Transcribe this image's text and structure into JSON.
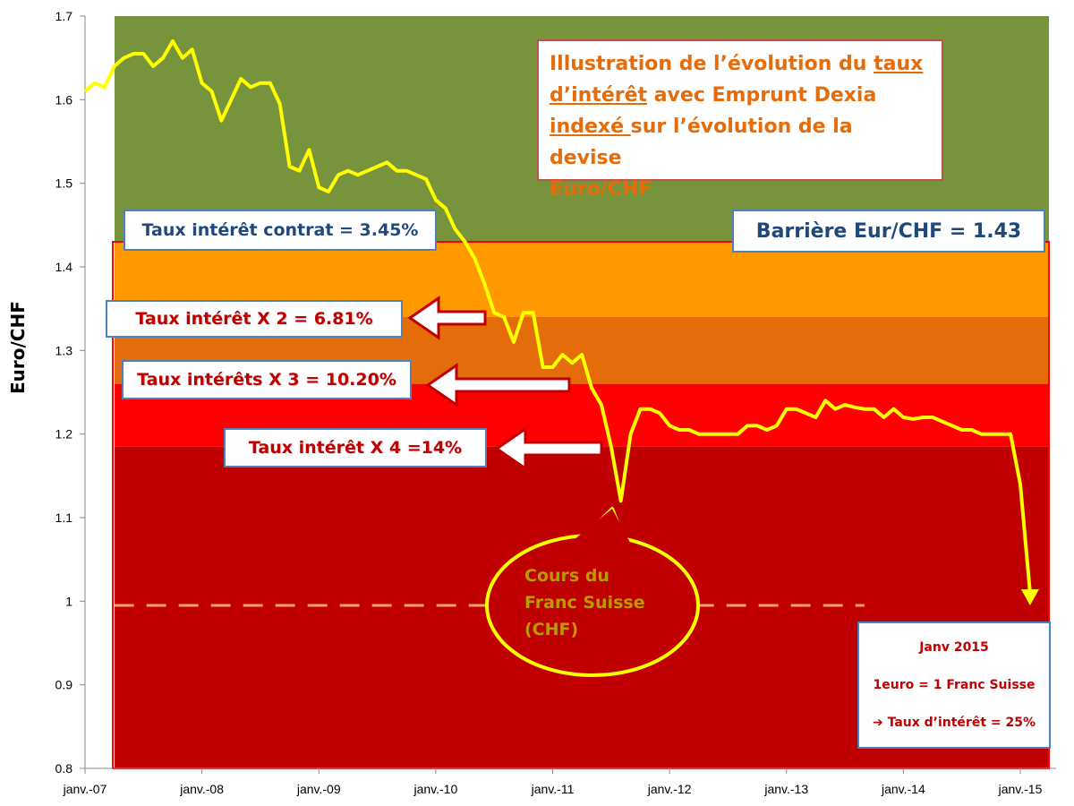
{
  "chart_data": {
    "type": "line",
    "title": "Illustration de l’évolution du taux d’intérêt avec Emprunt Dexia indexé sur l’évolution de la devise Euro/CHF",
    "title_parts": {
      "p1": "Illustration de l’évolution du ",
      "p2": "taux",
      "p3": "d’intérêt",
      "p4": " avec Emprunt Dexia",
      "p5": "indexé ",
      "p6": "sur l’évolution de la devise",
      "p7": "Euro/CHF"
    },
    "ylabel": "Euro/CHF",
    "xlabel": "",
    "ylim": [
      0.8,
      1.7
    ],
    "xlim": [
      "2007-01",
      "2015-03"
    ],
    "y_ticks": [
      "0.8",
      "0.9",
      "1",
      "1.1",
      "1.2",
      "1.3",
      "1.4",
      "1.5",
      "1.6",
      "1.7"
    ],
    "x_ticks": [
      "janv.-07",
      "janv.-08",
      "janv.-09",
      "janv.-10",
      "janv.-11",
      "janv.-12",
      "janv.-13",
      "janv.-14",
      "janv.-15"
    ],
    "grid": false,
    "colors": {
      "green": "#77933c",
      "orange": "#ff9900",
      "dark_orange": "#e46c0a",
      "red": "#ff0000",
      "dark_red": "#c00000",
      "line": "#ffff00",
      "dashed": "#f4a460"
    },
    "bands": [
      {
        "from": 1.43,
        "to": 1.7,
        "color": "#77933c"
      },
      {
        "from": 1.34,
        "to": 1.43,
        "color": "#ff9900"
      },
      {
        "from": 1.26,
        "to": 1.34,
        "color": "#e46c0a"
      },
      {
        "from": 1.185,
        "to": 1.26,
        "color": "#ff0000"
      },
      {
        "from": 0.8,
        "to": 1.185,
        "color": "#c00000"
      }
    ],
    "reference_line": {
      "y": 0.995,
      "from": "2007-04",
      "to": "2013-09"
    },
    "series": [
      {
        "x": [
          "2007-01",
          "2007-02",
          "2007-03",
          "2007-04",
          "2007-05",
          "2007-06",
          "2007-07",
          "2007-08",
          "2007-09",
          "2007-10",
          "2007-11",
          "2007-12",
          "2008-01",
          "2008-02",
          "2008-03",
          "2008-04",
          "2008-05",
          "2008-06",
          "2008-07",
          "2008-08",
          "2008-09",
          "2008-10",
          "2008-11",
          "2008-12",
          "2009-01",
          "2009-02",
          "2009-03",
          "2009-04",
          "2009-05",
          "2009-06",
          "2009-07",
          "2009-08",
          "2009-09",
          "2009-10",
          "2009-11",
          "2009-12",
          "2010-01",
          "2010-02",
          "2010-03",
          "2010-04",
          "2010-05",
          "2010-06",
          "2010-07",
          "2010-08",
          "2010-09",
          "2010-10",
          "2010-11",
          "2010-12",
          "2011-01",
          "2011-02",
          "2011-03",
          "2011-04",
          "2011-05",
          "2011-06",
          "2011-07",
          "2011-08",
          "2011-09",
          "2011-10",
          "2011-11",
          "2011-12",
          "2012-01",
          "2012-02",
          "2012-03",
          "2012-04",
          "2012-05",
          "2012-06",
          "2012-07",
          "2012-08",
          "2012-09",
          "2012-10",
          "2012-11",
          "2012-12",
          "2013-01",
          "2013-02",
          "2013-03",
          "2013-04",
          "2013-05",
          "2013-06",
          "2013-07",
          "2013-08",
          "2013-09",
          "2013-10",
          "2013-11",
          "2013-12",
          "2014-01",
          "2014-02",
          "2014-03",
          "2014-04",
          "2014-05",
          "2014-06",
          "2014-07",
          "2014-08",
          "2014-09",
          "2014-10",
          "2014-11",
          "2014-12",
          "2015-01",
          "2015-02"
        ],
        "y": [
          1.61,
          1.62,
          1.615,
          1.64,
          1.65,
          1.655,
          1.655,
          1.64,
          1.65,
          1.67,
          1.65,
          1.66,
          1.62,
          1.61,
          1.575,
          1.6,
          1.625,
          1.615,
          1.62,
          1.62,
          1.595,
          1.52,
          1.515,
          1.54,
          1.495,
          1.49,
          1.51,
          1.515,
          1.51,
          1.515,
          1.52,
          1.525,
          1.515,
          1.515,
          1.51,
          1.505,
          1.48,
          1.47,
          1.445,
          1.43,
          1.41,
          1.38,
          1.345,
          1.34,
          1.31,
          1.345,
          1.345,
          1.28,
          1.28,
          1.295,
          1.285,
          1.295,
          1.255,
          1.235,
          1.185,
          1.12,
          1.2,
          1.23,
          1.23,
          1.225,
          1.21,
          1.205,
          1.205,
          1.2,
          1.2,
          1.2,
          1.2,
          1.2,
          1.21,
          1.21,
          1.205,
          1.21,
          1.23,
          1.23,
          1.225,
          1.22,
          1.24,
          1.23,
          1.235,
          1.232,
          1.23,
          1.23,
          1.22,
          1.23,
          1.22,
          1.218,
          1.22,
          1.22,
          1.215,
          1.21,
          1.205,
          1.205,
          1.2,
          1.2,
          1.2,
          1.2,
          1.14,
          1.01
        ]
      }
    ],
    "annotations": {
      "contract": "Taux intérêt contrat = 3.45%",
      "barrier": "Barrière Eur/CHF = 1.43",
      "x2": "Taux intérêt X 2 = 6.81%",
      "x3": "Taux intérêts X 3 = 10.20%",
      "x4": "Taux intérêt X 4 =14%",
      "bubble_l1": "Cours du",
      "bubble_l2": "Franc Suisse",
      "bubble_l3": "(CHF)",
      "info_l1": "Janv 2015",
      "info_l2": "1euro = 1 Franc Suisse",
      "info_l3": "➔ Taux d’intérêt = 25%"
    }
  }
}
